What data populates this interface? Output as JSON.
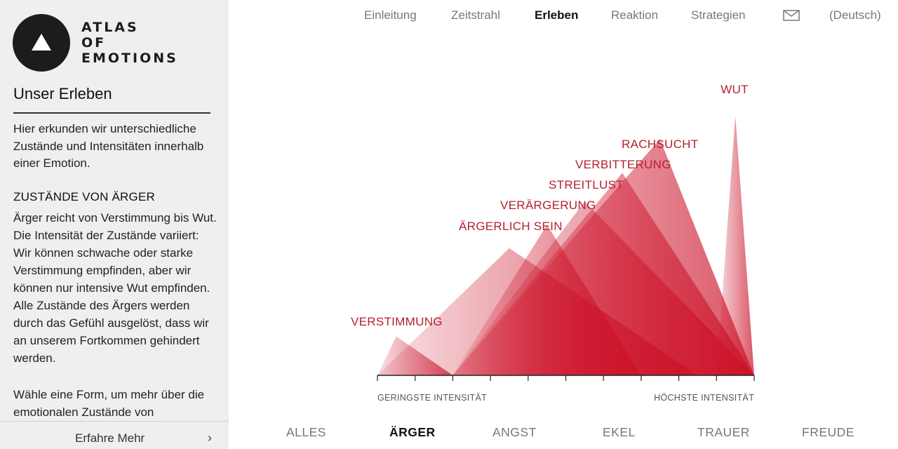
{
  "brand": {
    "lines": [
      "ATLAS",
      "OF",
      "EMOTIONS"
    ]
  },
  "sidebar": {
    "title": "Unser Erleben",
    "intro": "Hier erkunden wir unterschiedliche Zustände und Intensitäten innerhalb einer Emotion.",
    "heading": "ZUSTÄNDE VON ÄRGER",
    "body": "Ärger reicht von Verstimmung bis Wut. Die Intensität der Zustände variiert: Wir können schwache oder starke Verstimmung empfinden, aber wir können nur intensive Wut empfinden. Alle Zustände des Ärgers werden durch das Gefühl ausgelöst, dass wir an unserem Fortkommen gehindert werden.",
    "cta": "Wähle eine Form, um mehr über die emotionalen Zustände von",
    "more_label": "Erfahre Mehr",
    "more_chevron": "›"
  },
  "nav": {
    "items": [
      "Einleitung",
      "Zeitstrahl",
      "Erleben",
      "Reaktion",
      "Strategien"
    ],
    "active": "Erleben",
    "mail_icon": "mail-icon",
    "language": "(Deutsch)"
  },
  "chart_data": {
    "type": "area",
    "emotion": "ÄRGER",
    "states": [
      {
        "name": "VERSTIMMUNG",
        "start": 0.0,
        "peak": 0.05,
        "end": 0.2,
        "level": 0.15
      },
      {
        "name": "ÄRGERLICH SEIN",
        "start": 0.0,
        "peak": 0.35,
        "end": 0.85,
        "level": 0.49
      },
      {
        "name": "VERÄRGERUNG",
        "start": 0.2,
        "peak": 0.45,
        "end": 0.7,
        "level": 0.58
      },
      {
        "name": "STREITLUST",
        "start": 0.2,
        "peak": 0.55,
        "end": 1.0,
        "level": 0.67
      },
      {
        "name": "VERBITTERUNG",
        "start": 0.2,
        "peak": 0.65,
        "end": 1.0,
        "level": 0.78
      },
      {
        "name": "RACHSUCHT",
        "start": 0.2,
        "peak": 0.75,
        "end": 1.0,
        "level": 0.91
      },
      {
        "name": "WUT",
        "start": 0.9,
        "peak": 0.95,
        "end": 1.0,
        "level": 1.0
      }
    ],
    "xlabel_left": "GERINGSTE INTENSITÄT",
    "xlabel_right": "HÖCHSTE INTENSITÄT",
    "color": "#cc1128"
  },
  "emotions": {
    "tabs": [
      "ALLES",
      "ÄRGER",
      "ANGST",
      "EKEL",
      "TRAUER",
      "FREUDE"
    ],
    "active": "ÄRGER"
  }
}
